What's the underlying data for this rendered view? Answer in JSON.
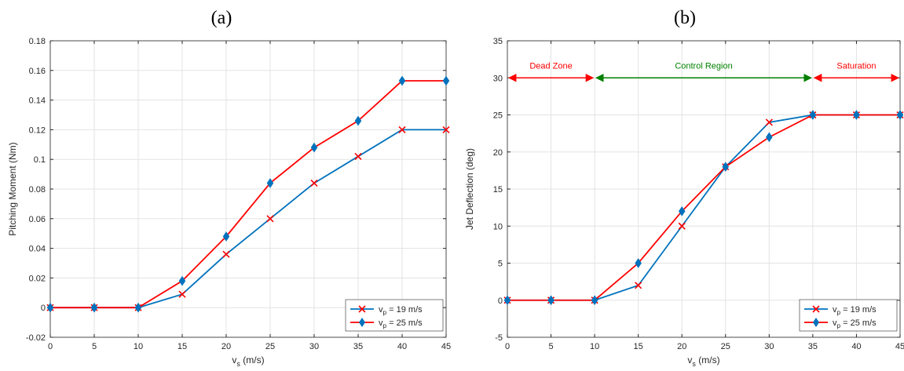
{
  "chart_data": [
    {
      "type": "line",
      "panel_label": "(a)",
      "xlabel": "v_s (m/s)",
      "ylabel": "Pitching Moment (Nm)",
      "xlim": [
        0,
        45
      ],
      "ylim": [
        -0.02,
        0.18
      ],
      "x_ticks": [
        "0",
        "5",
        "10",
        "15",
        "20",
        "25",
        "30",
        "35",
        "40",
        "45"
      ],
      "y_ticks": [
        "-0.02",
        "0",
        "0.02",
        "0.04",
        "0.06",
        "0.08",
        "0.1",
        "0.12",
        "0.14",
        "0.16",
        "0.18"
      ],
      "grid": true,
      "legend_position": "bottom-right",
      "x": [
        0,
        5,
        10,
        15,
        20,
        25,
        30,
        35,
        40,
        45
      ],
      "series": [
        {
          "name": "v_p = 19 m/s",
          "color": "#0072BD",
          "marker": "x",
          "marker_color": "#FF0000",
          "values": [
            0,
            0,
            0,
            0.009,
            0.036,
            0.06,
            0.084,
            0.102,
            0.12,
            0.12
          ]
        },
        {
          "name": "v_p = 25 m/s",
          "color": "#FF0000",
          "marker": "diamond",
          "marker_color": "#0072BD",
          "values": [
            0,
            0,
            0,
            0.018,
            0.048,
            0.084,
            0.108,
            0.126,
            0.153,
            0.153
          ]
        }
      ]
    },
    {
      "type": "line",
      "panel_label": "(b)",
      "xlabel": "v_s (m/s)",
      "ylabel": "Jet Deflection (deg)",
      "xlim": [
        0,
        45
      ],
      "ylim": [
        -5,
        35
      ],
      "x_ticks": [
        "0",
        "5",
        "10",
        "15",
        "20",
        "25",
        "30",
        "35",
        "40",
        "45"
      ],
      "y_ticks": [
        "-5",
        "0",
        "5",
        "10",
        "15",
        "20",
        "25",
        "30",
        "35"
      ],
      "grid": true,
      "legend_position": "bottom-right",
      "x": [
        0,
        5,
        10,
        15,
        20,
        25,
        30,
        35,
        40,
        45
      ],
      "series": [
        {
          "name": "v_p = 19 m/s",
          "color": "#0072BD",
          "marker": "x",
          "marker_color": "#FF0000",
          "values": [
            0,
            0,
            0,
            2,
            10,
            18,
            24,
            25,
            25,
            25
          ]
        },
        {
          "name": "v_p = 25 m/s",
          "color": "#FF0000",
          "marker": "diamond",
          "marker_color": "#0072BD",
          "values": [
            0,
            0,
            0,
            5,
            12,
            18,
            22,
            25,
            25,
            25
          ]
        }
      ],
      "annotations": [
        {
          "text": "Dead Zone",
          "color": "#FF0000",
          "x_start": 0,
          "x_end": 10,
          "y": 30
        },
        {
          "text": "Control Region",
          "color": "#008000",
          "x_start": 10,
          "x_end": 35,
          "y": 30
        },
        {
          "text": "Saturation",
          "color": "#FF0000",
          "x_start": 35,
          "x_end": 45,
          "y": 30
        }
      ]
    }
  ]
}
